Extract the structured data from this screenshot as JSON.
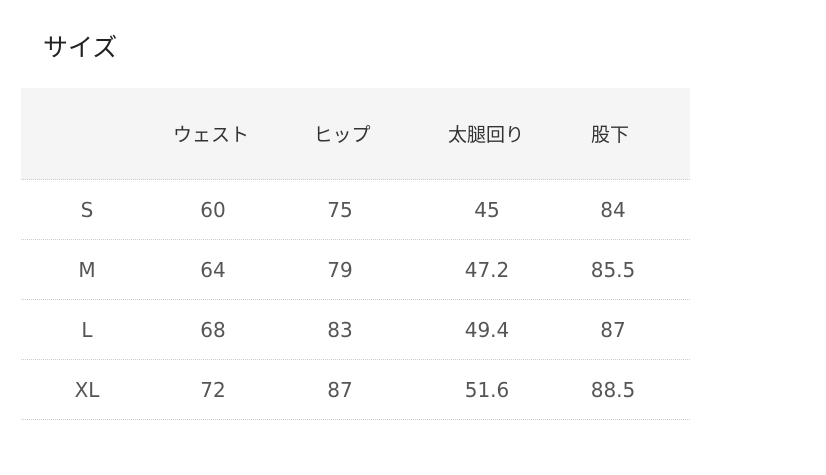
{
  "title": "サイズ",
  "table": {
    "headers": [
      "",
      "ウェスト",
      "ヒップ",
      "太腿回り",
      "股下"
    ],
    "rows": [
      [
        "S",
        "60",
        "75",
        "45",
        "84"
      ],
      [
        "M",
        "64",
        "79",
        "47.2",
        "85.5"
      ],
      [
        "L",
        "68",
        "83",
        "49.4",
        "87"
      ],
      [
        "XL",
        "72",
        "87",
        "51.6",
        "88.5"
      ]
    ]
  }
}
